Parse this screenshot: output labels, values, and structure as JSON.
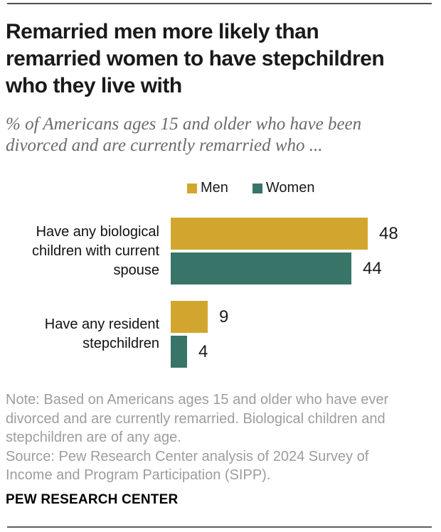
{
  "header": {
    "title": "Remarried men more likely than\nremarried women to have stepchildren\nwho they live with",
    "subtitle": "% of Americans ages 15 and older who have been\ndivorced and are currently remarried who ..."
  },
  "legend": {
    "items": [
      {
        "label": "Men",
        "color": "#d2a62e"
      },
      {
        "label": "Women",
        "color": "#397468"
      }
    ]
  },
  "chart_data": {
    "type": "bar",
    "orientation": "horizontal",
    "unit": "%",
    "categories": [
      "Have any biological\nchildren with current\nspouse",
      "Have any resident\nstepchildren"
    ],
    "series": [
      {
        "name": "Men",
        "color": "#d2a62e",
        "values": [
          48,
          9
        ]
      },
      {
        "name": "Women",
        "color": "#397468",
        "values": [
          44,
          4
        ]
      }
    ],
    "xlim": [
      0,
      60
    ],
    "grid": false,
    "value_labels": true,
    "legend_position": "top"
  },
  "footnote": {
    "note": "Note: Based on Americans ages 15 and older who have ever divorced and are currently remarried. Biological children and stepchildren are of any age.",
    "source": "Source: Pew Research Center analysis of 2024 Survey of Income and Program Participation (SIPP)."
  },
  "footer": {
    "brand": "PEW RESEARCH CENTER"
  }
}
